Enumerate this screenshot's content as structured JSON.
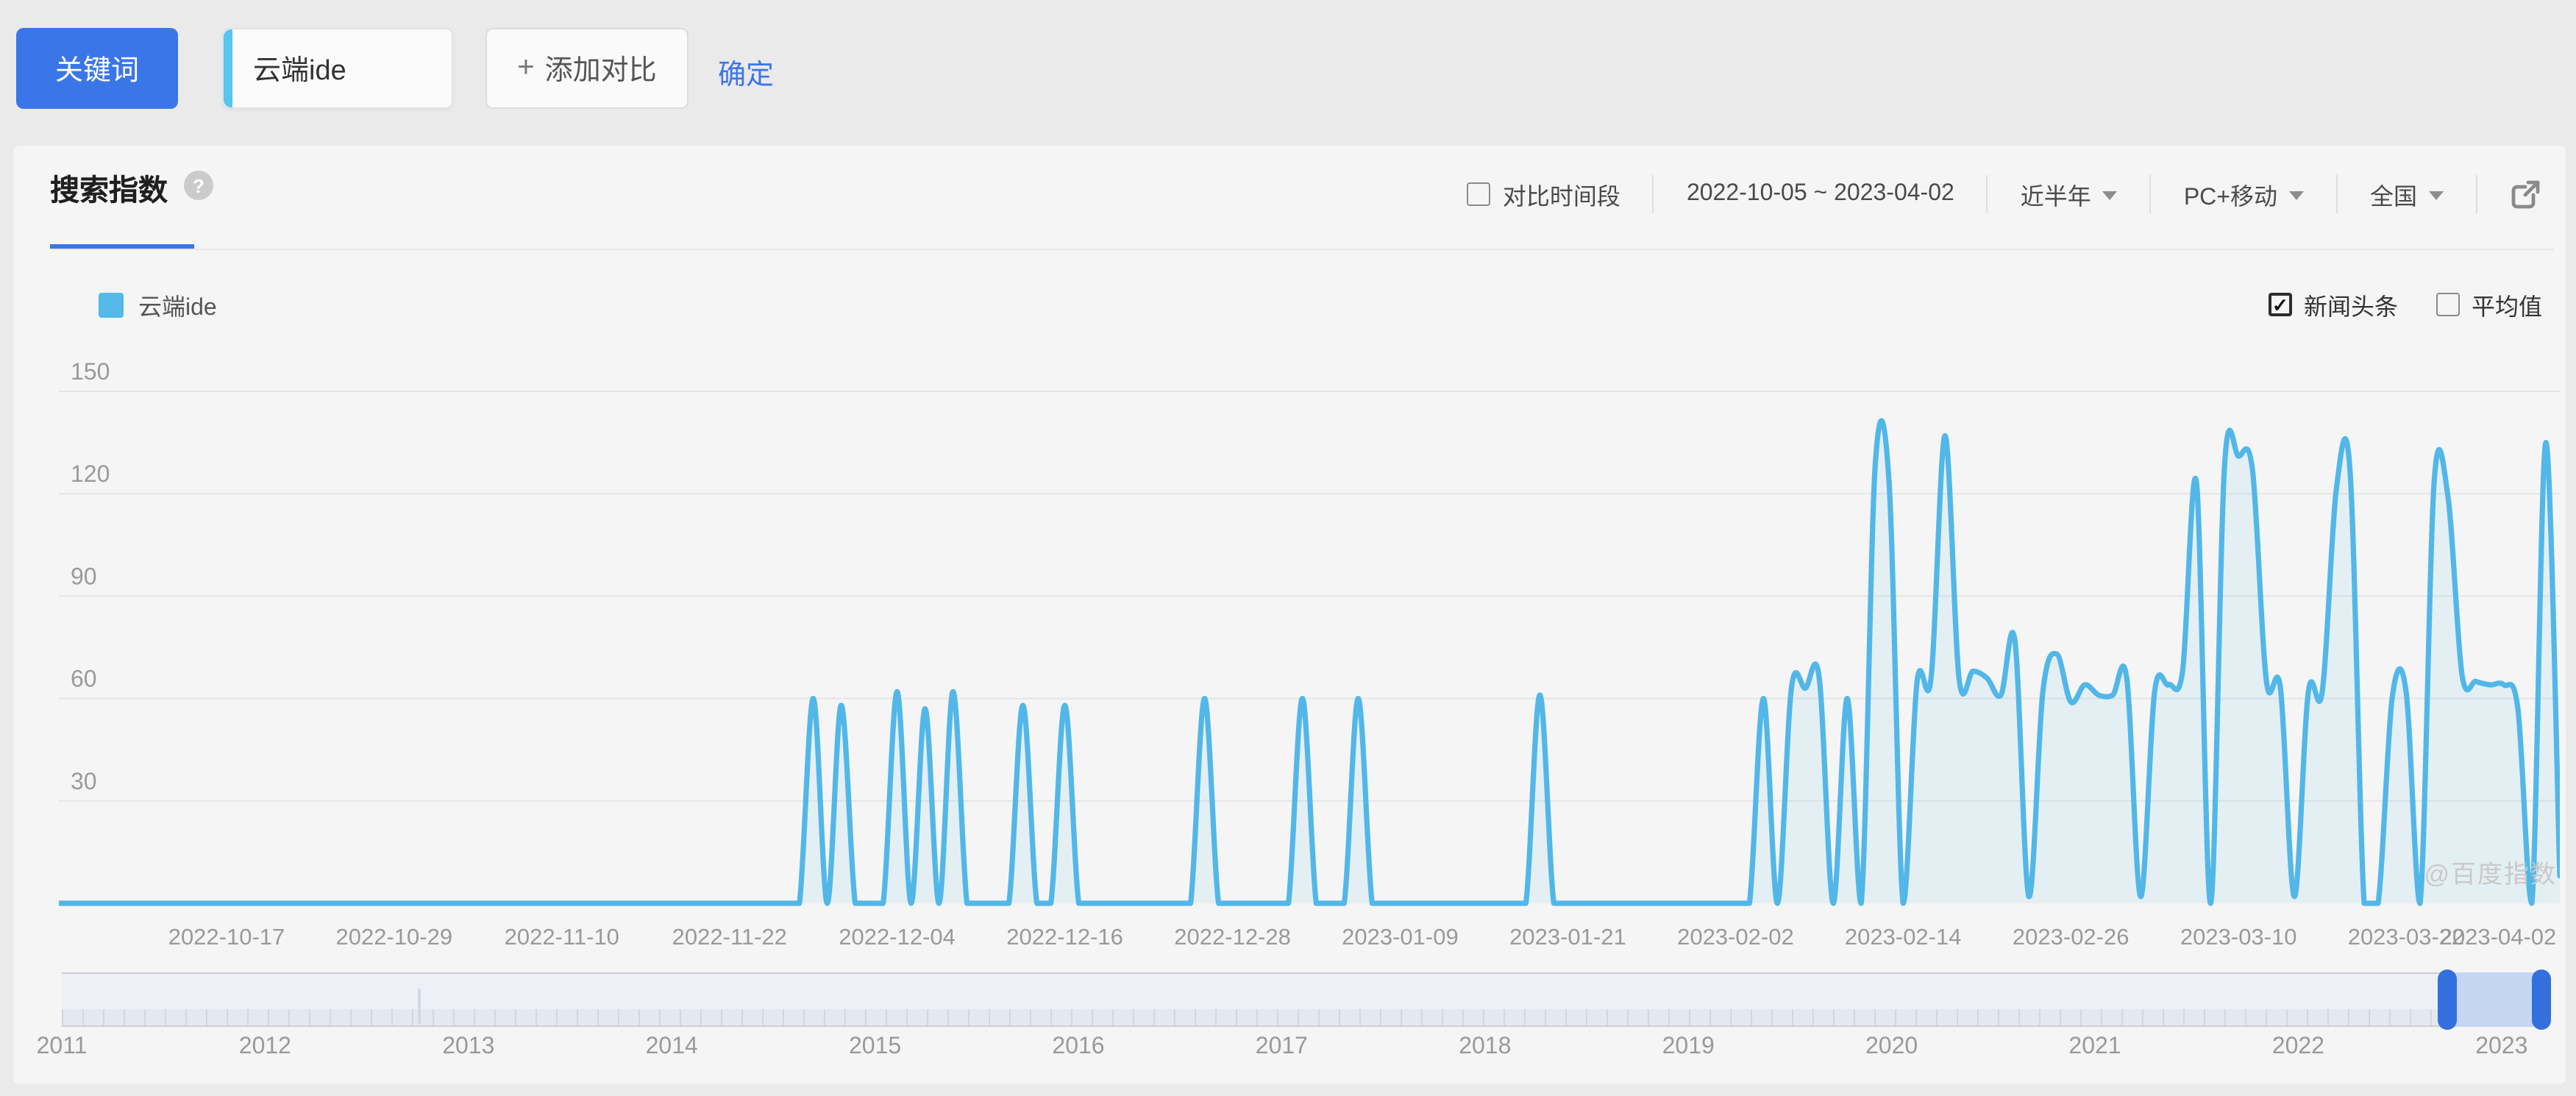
{
  "toolbar": {
    "keyword_button_label": "关键词",
    "keyword_input_value": "云端ide",
    "add_compare_plus": "+",
    "add_compare_label": "添加对比",
    "confirm_label": "确定"
  },
  "header": {
    "title": "搜索指数",
    "help_icon": "question-mark",
    "compare_period_label": "对比时间段",
    "compare_period_checked": false,
    "date_range": "2022-10-05 ~ 2023-04-02",
    "period_selected": "近半年",
    "platform_selected": "PC+移动",
    "region_selected": "全国"
  },
  "legend": {
    "series_label": "云端ide",
    "series_color": "#55b9e9",
    "news_label": "新闻头条",
    "news_checked": true,
    "news_checkmark": "✓",
    "avg_label": "平均值",
    "avg_checked": false
  },
  "watermark": "@百度指数",
  "chart_data": {
    "type": "line",
    "series_name": "云端ide",
    "start_date": "2022-10-05",
    "end_date": "2023-04-02",
    "n_days": 180,
    "baseline": 0,
    "ylim": [
      0,
      150
    ],
    "y_ticks": [
      30,
      60,
      90,
      120,
      150
    ],
    "grid": true,
    "smooth": true,
    "legend_position": "top-left",
    "line_color": "#52b7e8",
    "area_opacity": 0.1,
    "x_tick_day_offsets": [
      12,
      24,
      36,
      48,
      60,
      72,
      84,
      96,
      108,
      120,
      132,
      144,
      156,
      168,
      179
    ],
    "x_tick_labels": [
      "2022-10-17",
      "2022-10-29",
      "2022-11-10",
      "2022-11-22",
      "2022-12-04",
      "2022-12-16",
      "2022-12-28",
      "2023-01-09",
      "2023-01-21",
      "2023-02-02",
      "2023-02-14",
      "2023-02-26",
      "2023-03-10",
      "2023-03-22",
      "2023-04-02"
    ],
    "note": "daily values; all days not listed in points_day_value equal baseline 0",
    "points_day_value": [
      [
        54,
        60
      ],
      [
        56,
        58
      ],
      [
        60,
        62
      ],
      [
        62,
        57
      ],
      [
        64,
        62
      ],
      [
        69,
        58
      ],
      [
        72,
        58
      ],
      [
        82,
        60
      ],
      [
        89,
        60
      ],
      [
        93,
        60
      ],
      [
        106,
        61
      ],
      [
        122,
        60
      ],
      [
        124,
        63
      ],
      [
        125,
        63
      ],
      [
        126,
        66
      ],
      [
        128,
        60
      ],
      [
        130,
        128
      ],
      [
        131,
        123
      ],
      [
        133,
        65
      ],
      [
        134,
        66
      ],
      [
        135,
        137
      ],
      [
        136,
        66
      ],
      [
        137,
        68
      ],
      [
        138,
        66
      ],
      [
        139,
        61
      ],
      [
        140,
        77
      ],
      [
        141,
        2
      ],
      [
        142,
        62
      ],
      [
        143,
        73
      ],
      [
        144,
        59
      ],
      [
        145,
        64
      ],
      [
        146,
        61
      ],
      [
        147,
        61
      ],
      [
        148,
        66
      ],
      [
        149,
        2
      ],
      [
        150,
        62
      ],
      [
        151,
        64
      ],
      [
        152,
        68
      ],
      [
        153,
        123
      ],
      [
        155,
        128
      ],
      [
        156,
        131
      ],
      [
        157,
        127
      ],
      [
        158,
        65
      ],
      [
        159,
        63
      ],
      [
        160,
        2
      ],
      [
        161,
        62
      ],
      [
        162,
        62
      ],
      [
        163,
        121
      ],
      [
        164,
        126
      ],
      [
        167,
        60
      ],
      [
        168,
        62
      ],
      [
        170,
        123
      ],
      [
        171,
        119
      ],
      [
        172,
        67
      ],
      [
        173,
        65
      ],
      [
        174,
        64
      ],
      [
        175,
        64
      ],
      [
        176,
        57
      ],
      [
        178,
        135
      ],
      [
        179,
        8
      ]
    ]
  },
  "timeline": {
    "years": [
      "2011",
      "2012",
      "2013",
      "2014",
      "2015",
      "2016",
      "2017",
      "2018",
      "2019",
      "2020",
      "2021",
      "2022",
      "2023"
    ],
    "selection_start_year": 2022.73,
    "selection_end_year": 2023.2,
    "mini_spike_year": 2012.75
  }
}
